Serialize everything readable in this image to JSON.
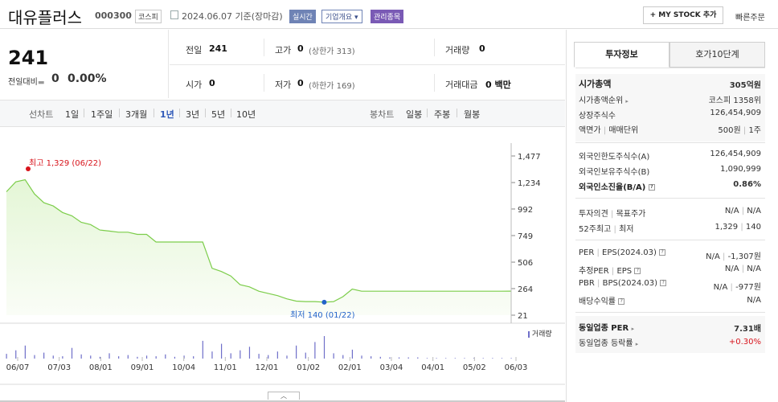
{
  "header": {
    "name": "대유플러스",
    "code": "000300",
    "market": "코스피",
    "date": "2024.06.07 기준(장마감)",
    "realtime": "실시간",
    "corp_info": "기업개요",
    "corp_arrow": "▾",
    "admin": "관리종목",
    "mystock": "+ MY STOCK 추가",
    "quick_order": "빠른주문"
  },
  "price": {
    "current": "241",
    "change_label": "전일대비",
    "change_arrow": "▬",
    "change": "0",
    "change_pct": "0.00%"
  },
  "stats": {
    "prev_close_label": "전일",
    "prev_close": "241",
    "high_label": "고가",
    "high": "0",
    "upper_limit": "(상한가 313)",
    "volume_label": "거래량",
    "volume": "0",
    "open_label": "시가",
    "open": "0",
    "low_label": "저가",
    "low": "0",
    "lower_limit": "(하한가 169)",
    "value_label": "거래대금",
    "value": "0 백만"
  },
  "period_tabs": {
    "label": "선차트",
    "items": [
      "1일",
      "1주일",
      "3개월",
      "1년",
      "3년",
      "5년",
      "10년"
    ],
    "active": "1년",
    "bar_label": "봉차트",
    "bar_items": [
      "일봉",
      "주봉",
      "월봉"
    ]
  },
  "colors": {
    "line": "#7ccd4a",
    "fill_top": "#e4f6d6",
    "active": "#2f59b8",
    "high": "#d8141c",
    "low": "#2262c9",
    "up": "#d8141c",
    "accent_tag": "#6f83b5"
  },
  "chart_data": {
    "type": "area",
    "x": [
      "06/07",
      "06/14",
      "06/21",
      "06/28",
      "07/05",
      "07/12",
      "07/19",
      "07/26",
      "08/02",
      "08/09",
      "08/16",
      "08/23",
      "08/30",
      "09/06",
      "09/13",
      "09/20",
      "09/27",
      "10/04",
      "10/11",
      "10/18",
      "10/25",
      "11/01",
      "11/03",
      "11/08",
      "11/15",
      "11/22",
      "11/29",
      "12/06",
      "12/13",
      "12/20",
      "12/27",
      "01/03",
      "01/10",
      "01/17",
      "01/22",
      "01/29",
      "02/05",
      "02/08",
      "02/15",
      "02/22",
      "02/29",
      "03/08",
      "03/15",
      "03/22",
      "03/29",
      "04/05",
      "04/12",
      "04/19",
      "04/26",
      "05/03",
      "05/10",
      "05/17",
      "05/24",
      "05/31",
      "06/07"
    ],
    "y": [
      1150,
      1240,
      1260,
      1130,
      1050,
      1020,
      960,
      930,
      870,
      850,
      800,
      790,
      780,
      780,
      760,
      760,
      690,
      690,
      690,
      690,
      690,
      690,
      450,
      420,
      380,
      300,
      280,
      240,
      220,
      200,
      170,
      150,
      145,
      145,
      140,
      145,
      190,
      260,
      240,
      240,
      240,
      240,
      240,
      240,
      240,
      240,
      240,
      240,
      240,
      240,
      240,
      240,
      240,
      240,
      241
    ],
    "ylim": [
      21,
      1477
    ],
    "yticks": [
      "1,477",
      "1,234",
      "992",
      "749",
      "506",
      "264",
      "21"
    ],
    "xticks": [
      "06/07",
      "07/03",
      "08/01",
      "09/01",
      "10/04",
      "11/01",
      "12/01",
      "01/02",
      "02/01",
      "03/04",
      "04/01",
      "05/02",
      "06/03"
    ],
    "high_label": "최고 1,329 (06/22)",
    "low_label": "최저 140 (01/22)",
    "volume_label": "거래량",
    "volume": [
      8,
      14,
      22,
      6,
      10,
      5,
      4,
      18,
      7,
      5,
      3,
      9,
      4,
      6,
      3,
      5,
      4,
      7,
      3,
      5,
      4,
      30,
      12,
      25,
      9,
      14,
      20,
      8,
      6,
      12,
      5,
      22,
      10,
      28,
      38,
      9,
      6,
      15,
      5,
      4,
      3,
      2,
      2,
      2,
      2,
      1,
      1,
      1,
      1,
      1,
      1,
      1,
      1,
      1,
      1
    ]
  },
  "right_tabs": [
    "투자정보",
    "호가10단계"
  ],
  "invest": {
    "market_cap_label": "시가총액",
    "market_cap": "305억원",
    "rank_label": "시가총액순위",
    "rank": "코스피 1358위",
    "shares_label": "상장주식수",
    "shares": "126,454,909",
    "par_label": "액면가",
    "par_sep": "매매단위",
    "par": "500원",
    "unit": "1주",
    "foreign_limit_label": "외국인한도주식수(A)",
    "foreign_limit": "126,454,909",
    "foreign_hold_label": "외국인보유주식수(B)",
    "foreign_hold": "1,090,999",
    "foreign_rate_label": "외국인소진율(B/A)",
    "foreign_rate": "0.86%",
    "opinion_label": "투자의견",
    "target_label": "목표주가",
    "opinion": "N/A",
    "target": "N/A",
    "w52_label": "52주최고",
    "w52_low_label": "최저",
    "w52_high": "1,329",
    "w52_low": "140",
    "per_label": "PER",
    "eps_label": "EPS(2024.03)",
    "per": "N/A",
    "eps": "-1,307원",
    "est_per_label": "추정PER",
    "est_eps_label": "EPS",
    "est_per": "N/A",
    "est_eps": "N/A",
    "pbr_label": "PBR",
    "bps_label": "BPS(2024.03)",
    "pbr": "N/A",
    "bps": "-977원",
    "div_label": "배당수익률",
    "div": "N/A",
    "sector_per_label": "동일업종 PER",
    "sector_per": "7.31배",
    "sector_rate_label": "동일업종 등락률",
    "sector_rate": "+0.30%",
    "q": "?",
    "pipe": "|",
    "arrow": "▸",
    "comma": "|"
  },
  "collapse_arrow": "︿"
}
